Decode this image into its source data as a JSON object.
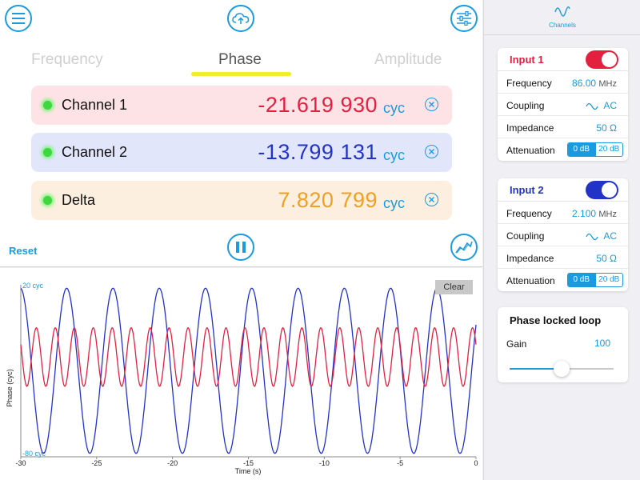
{
  "main": {
    "tabs": [
      {
        "label": "Frequency",
        "active": false
      },
      {
        "label": "Phase",
        "active": true
      },
      {
        "label": "Amplitude",
        "active": false
      }
    ],
    "rows": [
      {
        "label": "Channel 1",
        "value": "-21.619 930",
        "unit": "cyc",
        "bg": "#fde3e5",
        "color": "#e3213e"
      },
      {
        "label": "Channel 2",
        "value": "-13.799 131",
        "unit": "cyc",
        "bg": "#e2e6fb",
        "color": "#2233c8"
      },
      {
        "label": "Delta",
        "value": "7.820 799",
        "unit": "cyc",
        "bg": "#fcefe0",
        "color": "#f0a020"
      }
    ],
    "reset_label": "Reset"
  },
  "chart": {
    "clear_label": "Clear"
  },
  "chart_data": {
    "type": "line",
    "xlabel": "Time (s)",
    "ylabel": "Phase (cyc)",
    "xlim": [
      -30,
      0
    ],
    "ylim": [
      -80,
      20
    ],
    "x_ticks": [
      "-30",
      "-25",
      "-20",
      "-15",
      "-10",
      "-5",
      "0"
    ],
    "y_top_label": "20 cyc",
    "y_bottom_label": "-80 cyc",
    "series": [
      {
        "color": "#2233c8",
        "kind": "sine",
        "center": -30,
        "amplitude": 48,
        "period_s": 3.05,
        "phase_s": -28.5
      },
      {
        "color": "#e3213e",
        "kind": "sine",
        "center": -22,
        "amplitude": 17,
        "period_s": 1.25,
        "phase_s": -29.6
      }
    ]
  },
  "sidebar": {
    "header_label": "Channels",
    "inputs": [
      {
        "title": "Input 1",
        "title_color": "#e3213e",
        "toggle_color": "#e3213e",
        "frequency_label": "Frequency",
        "frequency_value": "86.00",
        "frequency_unit": "MHz",
        "coupling_label": "Coupling",
        "coupling_value": "AC",
        "impedance_label": "Impedance",
        "impedance_value": "50 Ω",
        "attenuation_label": "Attenuation",
        "att_on": "0 dB",
        "att_off": "20 dB"
      },
      {
        "title": "Input 2",
        "title_color": "#2233c8",
        "toggle_color": "#2233c8",
        "frequency_label": "Frequency",
        "frequency_value": "2.100",
        "frequency_unit": "MHz",
        "coupling_label": "Coupling",
        "coupling_value": "AC",
        "impedance_label": "Impedance",
        "impedance_value": "50 Ω",
        "attenuation_label": "Attenuation",
        "att_on": "0 dB",
        "att_off": "20 dB"
      }
    ],
    "pll": {
      "title": "Phase locked loop",
      "gain_label": "Gain",
      "gain_value": "100",
      "slider_fraction": 0.5
    }
  },
  "icons": {
    "menu": "menu-icon",
    "cloud": "cloud-upload-icon",
    "settings": "sliders-icon",
    "pause": "pause-icon",
    "graph": "chart-line-icon",
    "wave": "sine-wave-icon"
  }
}
